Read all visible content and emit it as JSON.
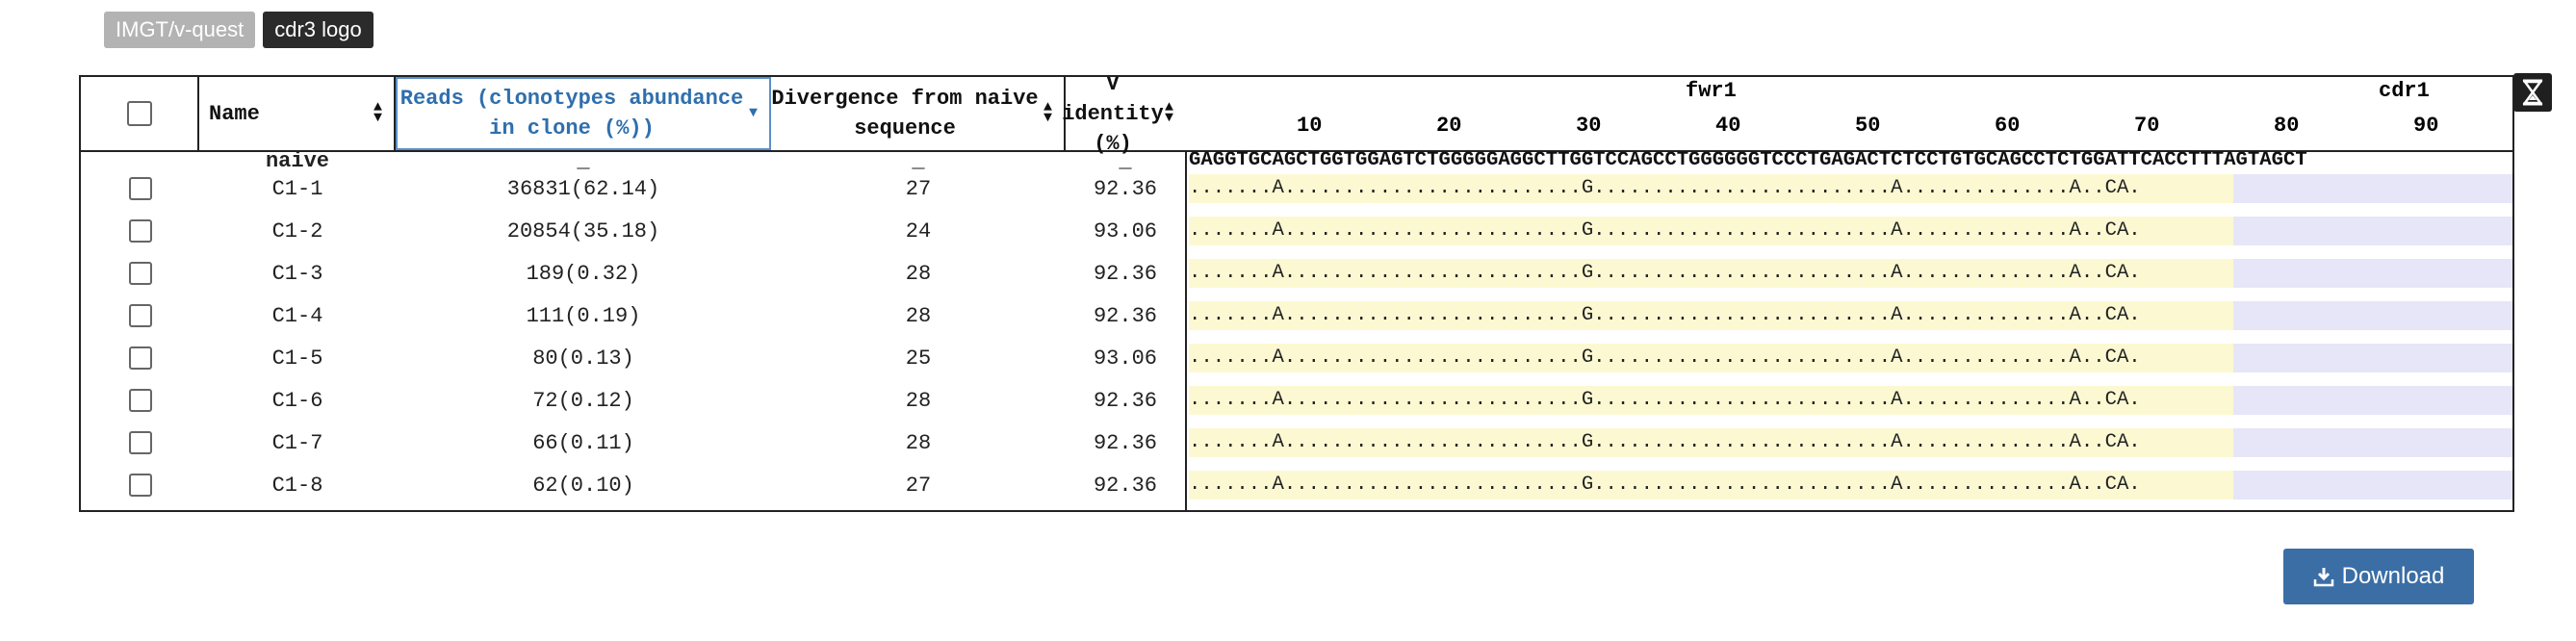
{
  "toolbar": {
    "imgt_label": "IMGT/v-quest",
    "logo_label": "cdr3 logo",
    "download_label": "Download"
  },
  "table": {
    "columns": {
      "name": "Name",
      "reads": "Reads (clonotypes abundance in clone (%))",
      "divergence": "Divergence from naive sequence",
      "identity": "V identity (%)"
    },
    "sorted_column": "reads",
    "regions": [
      "fwr1",
      "cdr1"
    ],
    "ticks": [
      "10",
      "20",
      "30",
      "40",
      "50",
      "60",
      "70",
      "80",
      "90"
    ],
    "naive": {
      "name": "naive",
      "reads": "_",
      "divergence": "_",
      "identity": "_",
      "sequence": "GAGGTGCAGCTGGTGGAGTCTGGGGGAGGCTTGGTCCAGCCTGGGGGGTCCCTGAGACTCTCCTGTGCAGCCTCTGGATTCACCTTTAGTAGCT"
    },
    "rows": [
      {
        "name": "C1-1",
        "reads": "36831(62.14)",
        "divergence": "27",
        "identity": "92.36",
        "sequence": ".......A.........................G.........................A..............A..CA."
      },
      {
        "name": "C1-2",
        "reads": "20854(35.18)",
        "divergence": "24",
        "identity": "93.06",
        "sequence": ".......A.........................G.........................A..............A..CA."
      },
      {
        "name": "C1-3",
        "reads": "189(0.32)",
        "divergence": "28",
        "identity": "92.36",
        "sequence": ".......A.........................G.........................A..............A..CA."
      },
      {
        "name": "C1-4",
        "reads": "111(0.19)",
        "divergence": "28",
        "identity": "92.36",
        "sequence": ".......A.........................G.........................A..............A..CA."
      },
      {
        "name": "C1-5",
        "reads": "80(0.13)",
        "divergence": "25",
        "identity": "93.06",
        "sequence": ".......A.........................G.........................A..............A..CA."
      },
      {
        "name": "C1-6",
        "reads": "72(0.12)",
        "divergence": "28",
        "identity": "92.36",
        "sequence": ".......A.........................G.........................A..............A..CA."
      },
      {
        "name": "C1-7",
        "reads": "66(0.11)",
        "divergence": "28",
        "identity": "92.36",
        "sequence": ".......A.........................G.........................A..............A..CA."
      },
      {
        "name": "C1-8",
        "reads": "62(0.10)",
        "divergence": "27",
        "identity": "92.36",
        "sequence": ".......A.........................G.........................A..............A..CA."
      }
    ]
  },
  "colors": {
    "fwr_bg": "#fcf9d2",
    "cdr_bg": "#e6e6f8",
    "accent": "#3b6ea5",
    "sorted_header": "#2f6fad"
  },
  "icons": [
    "hourglass-icon",
    "download-icon",
    "sort-icon",
    "sort-desc-icon"
  ]
}
